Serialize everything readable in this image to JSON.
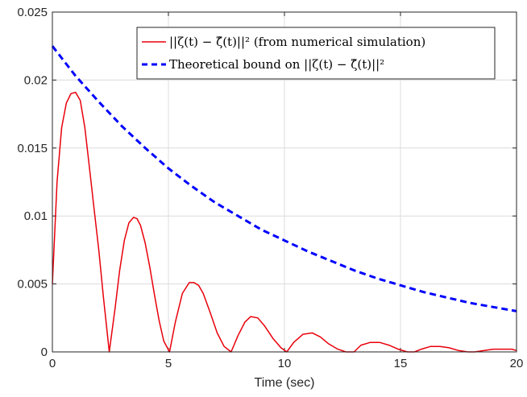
{
  "chart_data": {
    "type": "line",
    "title": "",
    "xlabel": "Time (sec)",
    "ylabel": "",
    "xlim": [
      0,
      20
    ],
    "ylim": [
      0,
      0.025
    ],
    "xticks": [
      0,
      5,
      10,
      15,
      20
    ],
    "xtick_labels": [
      "0",
      "5",
      "10",
      "15",
      "20"
    ],
    "yticks": [
      0,
      0.005,
      0.01,
      0.015,
      0.02,
      0.025
    ],
    "ytick_labels": [
      "0",
      "0.005",
      "0.01",
      "0.015",
      "0.02",
      "0.025"
    ],
    "grid": true,
    "legend_position": "top-right",
    "series": [
      {
        "name": "||ζ(t) − ζ̂(t)||² (from numerical simulation)",
        "style": "solid",
        "color": "#e8000b",
        "x": [
          0,
          0.2,
          0.4,
          0.6,
          0.8,
          1.0,
          1.2,
          1.4,
          1.6,
          1.8,
          2.0,
          2.2,
          2.45,
          2.7,
          2.9,
          3.1,
          3.3,
          3.5,
          3.65,
          3.8,
          4.0,
          4.2,
          4.4,
          4.6,
          4.8,
          5.05,
          5.3,
          5.6,
          5.9,
          6.1,
          6.3,
          6.5,
          6.8,
          7.1,
          7.4,
          7.7,
          8.0,
          8.3,
          8.55,
          8.85,
          9.15,
          9.5,
          9.85,
          10.1,
          10.4,
          10.8,
          11.2,
          11.55,
          11.9,
          12.3,
          12.65,
          13.0,
          13.3,
          13.7,
          14.1,
          14.5,
          14.9,
          15.3,
          15.6,
          15.9,
          16.3,
          16.7,
          17.1,
          17.5,
          17.9,
          18.2,
          18.6,
          19.0,
          19.4,
          19.8,
          20.0
        ],
        "y": [
          0.005,
          0.0125,
          0.0165,
          0.0183,
          0.019,
          0.0191,
          0.0185,
          0.0165,
          0.0135,
          0.0105,
          0.0075,
          0.004,
          0.0,
          0.0032,
          0.006,
          0.0082,
          0.0095,
          0.0099,
          0.0098,
          0.0093,
          0.008,
          0.0062,
          0.0042,
          0.0023,
          0.0008,
          0.0,
          0.0022,
          0.0043,
          0.0051,
          0.0051,
          0.0049,
          0.0043,
          0.0029,
          0.0014,
          0.0004,
          0.0,
          0.0012,
          0.0022,
          0.0026,
          0.0025,
          0.0019,
          0.001,
          0.0003,
          0.0,
          0.0007,
          0.0013,
          0.0014,
          0.0011,
          0.0006,
          0.0002,
          0.0,
          0.0,
          0.0005,
          0.0007,
          0.0007,
          0.0005,
          0.0002,
          0.0,
          0.0,
          0.0002,
          0.0004,
          0.0004,
          0.0003,
          0.0001,
          0.0,
          0.0,
          0.0001,
          0.0002,
          0.0002,
          0.0002,
          0.0001
        ]
      },
      {
        "name": "Theoretical bound on ||ζ(t) − ζ̂(t)||²",
        "style": "dashed",
        "color": "#0000ff",
        "x": [
          0,
          1,
          2,
          3,
          4,
          5,
          6,
          7,
          8,
          9,
          10,
          11,
          12,
          13,
          14,
          15,
          16,
          17,
          18,
          19,
          20
        ],
        "y": [
          0.0225,
          0.0203,
          0.0184,
          0.0166,
          0.015,
          0.0135,
          0.0122,
          0.011,
          0.01,
          0.009,
          0.0082,
          0.0074,
          0.0067,
          0.006,
          0.0054,
          0.0049,
          0.0044,
          0.004,
          0.0036,
          0.0033,
          0.003
        ]
      }
    ]
  }
}
